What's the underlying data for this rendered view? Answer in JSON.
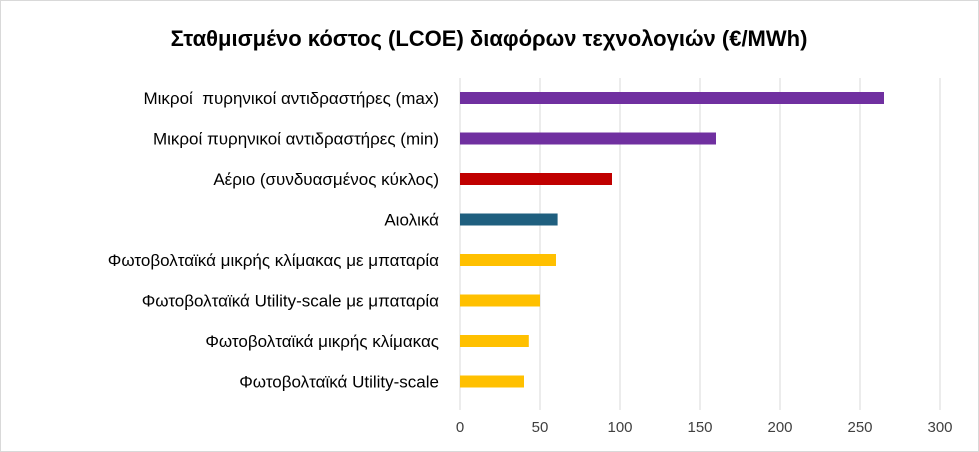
{
  "chart_data": {
    "type": "bar",
    "orientation": "horizontal",
    "title": "Σταθμισμένο κόστος (LCOE) διαφόρων τεχνολογιών (€/MWh)",
    "categories": [
      "Μικροί  πυρηνικοί αντιδραστήρες (max)",
      "Μικροί πυρηνικοί αντιδραστήρες (min)",
      "Αέριο (συνδυασμένος κύκλος)",
      "Αιολικά",
      "Φωτοβολταϊκά μικρής κλίμακας με μπαταρία",
      "Φωτοβολταϊκά Utility-scale με μπαταρία",
      "Φωτοβολταϊκά μικρής κλίμακας",
      "Φωτοβολταϊκά Utility-scale"
    ],
    "values": [
      265,
      160,
      95,
      61,
      60,
      50,
      43,
      40
    ],
    "colors": [
      "#7030a0",
      "#7030a0",
      "#c00000",
      "#1f5f7f",
      "#ffc000",
      "#ffc000",
      "#ffc000",
      "#ffc000"
    ],
    "xlim": [
      0,
      300
    ],
    "xticks": [
      "0",
      "50",
      "100",
      "150",
      "200",
      "250",
      "300"
    ],
    "grid": "vertical",
    "legend": "none"
  }
}
